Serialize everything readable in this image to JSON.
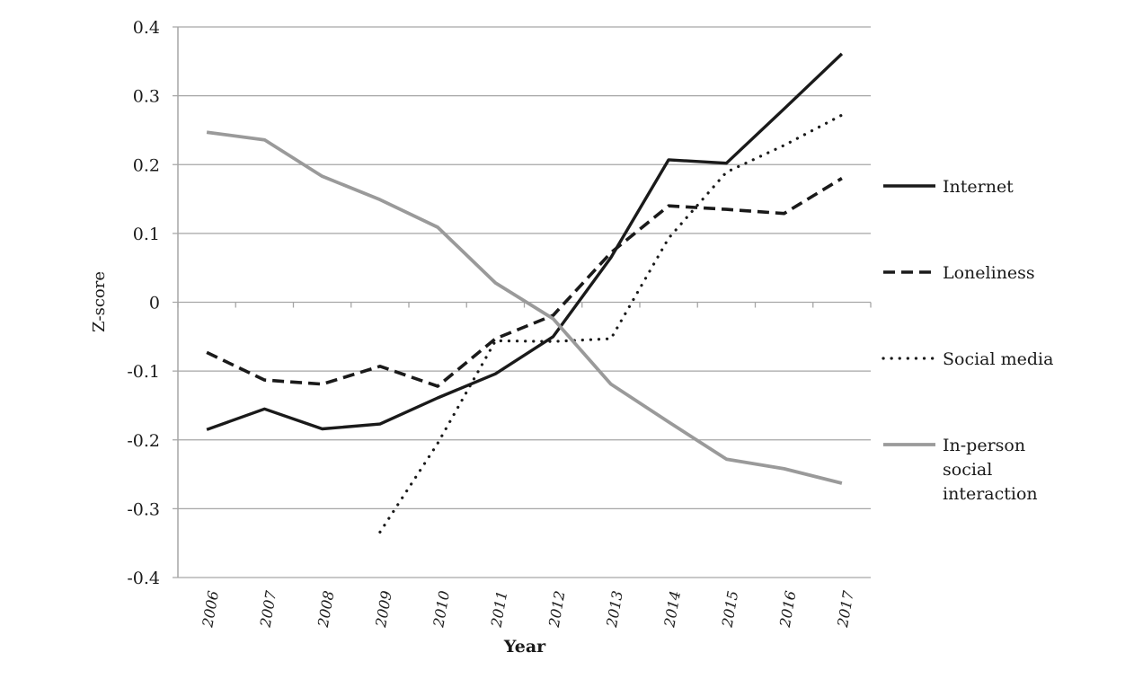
{
  "chart_data": {
    "type": "line",
    "title": "",
    "xlabel": "Year",
    "ylabel": "Z-score",
    "ylim": [
      -0.4,
      0.4
    ],
    "yticks": [
      "0.4",
      "0.3",
      "0.2",
      "0.1",
      "0",
      "-0.1",
      "-0.2",
      "-0.3",
      "-0.4"
    ],
    "grid": true,
    "legend_position": "right",
    "categories": [
      "2006",
      "2007",
      "2008",
      "2009",
      "2010",
      "2011",
      "2012",
      "2013",
      "2014",
      "2015",
      "2016",
      "2017"
    ],
    "series": [
      {
        "name": "Internet",
        "style": "solid",
        "color": "#1a1a1a",
        "values": [
          -0.185,
          -0.155,
          -0.184,
          -0.177,
          -0.139,
          -0.104,
          -0.05,
          0.065,
          0.207,
          0.202,
          0.281,
          0.361
        ]
      },
      {
        "name": "Loneliness",
        "style": "dashed",
        "color": "#1a1a1a",
        "values": [
          -0.073,
          -0.113,
          -0.119,
          -0.093,
          -0.122,
          -0.053,
          -0.019,
          0.072,
          0.14,
          0.135,
          0.129,
          0.18
        ]
      },
      {
        "name": "Social media",
        "style": "dotted",
        "color": "#1a1a1a",
        "values": [
          null,
          null,
          null,
          -0.334,
          -0.205,
          -0.056,
          -0.057,
          -0.053,
          0.093,
          0.189,
          0.228,
          0.272
        ]
      },
      {
        "name": "In-person social interaction",
        "legend_lines": [
          "In-person",
          "social",
          "interaction"
        ],
        "style": "solid",
        "color": "#9a9a9a",
        "values": [
          0.247,
          0.236,
          0.183,
          0.149,
          0.109,
          0.028,
          -0.024,
          -0.119,
          -0.174,
          -0.228,
          -0.242,
          -0.263
        ]
      }
    ]
  },
  "colors": {
    "gridline": "#a6a6a6",
    "axis": "#a6a6a6",
    "dark_series": "#1a1a1a",
    "gray_series": "#9a9a9a"
  }
}
